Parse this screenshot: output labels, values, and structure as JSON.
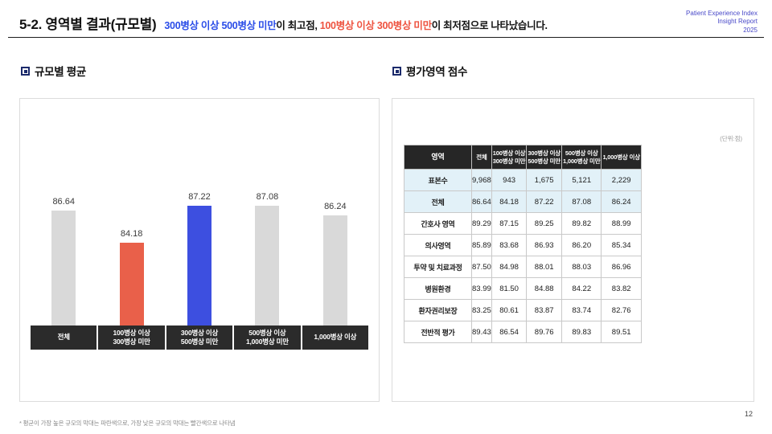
{
  "header": {
    "title": "5-2. 영역별 결과(규모별)",
    "subtitle": {
      "blue": "300병상 이상 500병상 미만",
      "mid": "이 최고점, ",
      "red": "100병상 이상 300병상 미만",
      "tail": "이 최저점으로 나타났습니다."
    },
    "brand": {
      "line1": "Patient Experience Index",
      "line2": "Insight Report",
      "line3": "2025"
    }
  },
  "sections": {
    "left_title": "규모별 평균",
    "right_title": "평가영역 점수"
  },
  "chart_data": [
    {
      "type": "bar",
      "title": "규모별 평균",
      "categories": [
        "전체",
        "100병상 이상\n300병상 미만",
        "300병상 이상\n500병상 미만",
        "500병상 이상\n1,000병상 미만",
        "1,000병상 이상"
      ],
      "values": [
        86.64,
        84.18,
        87.22,
        87.08,
        86.24
      ],
      "colors": [
        "#d9d9d9",
        "#e9604a",
        "#3d4fe0",
        "#d9d9d9",
        "#d9d9d9"
      ],
      "ylim": [
        78,
        88
      ],
      "grid": false,
      "legend": "none",
      "value_labels": true
    },
    {
      "type": "table",
      "title": "평가영역 점수",
      "unit_note": "(단위:점)",
      "columns": [
        "영역",
        "전체",
        "100병상 이상\n300병상 미만",
        "300병상 이상\n500병상 미만",
        "500병상 이상\n1,000병상 미만",
        "1,000병상 이상"
      ],
      "rows": [
        {
          "label": "표본수",
          "values": [
            "9,968",
            "943",
            "1,675",
            "5,121",
            "2,229"
          ],
          "highlight": true
        },
        {
          "label": "전체",
          "values": [
            "86.64",
            "84.18",
            "87.22",
            "87.08",
            "86.24"
          ],
          "highlight": true
        },
        {
          "label": "간호사 영역",
          "values": [
            "89.29",
            "87.15",
            "89.25",
            "89.82",
            "88.99"
          ],
          "highlight": false
        },
        {
          "label": "의사영역",
          "values": [
            "85.89",
            "83.68",
            "86.93",
            "86.20",
            "85.34"
          ],
          "highlight": false
        },
        {
          "label": "투약 및 치료과정",
          "values": [
            "87.50",
            "84.98",
            "88.01",
            "88.03",
            "86.96"
          ],
          "highlight": false
        },
        {
          "label": "병원환경",
          "values": [
            "83.99",
            "81.50",
            "84.88",
            "84.22",
            "83.82"
          ],
          "highlight": false
        },
        {
          "label": "환자권리보장",
          "values": [
            "83.25",
            "80.61",
            "83.87",
            "83.74",
            "82.76"
          ],
          "highlight": false
        },
        {
          "label": "전반적 평가",
          "values": [
            "89.43",
            "86.54",
            "89.76",
            "89.83",
            "89.51"
          ],
          "highlight": false
        }
      ]
    }
  ],
  "footer": {
    "note": "* 평균이 가장 높은 규모의 막대는 파란색으로, 가장 낮은 규모의 막대는 빨간색으로 나타냄",
    "page": "12"
  },
  "colors": {
    "accent_blue": "#2b4de8",
    "accent_red": "#ee5340",
    "brand_blue": "#4848c8",
    "bar_gray": "#d9d9d9",
    "bar_red": "#e9604a",
    "bar_blue": "#3d4fe0",
    "category_box_bg": "#2b2b2b",
    "table_header_bg": "#262626",
    "highlight_row_bg": "#e2f1f8"
  }
}
